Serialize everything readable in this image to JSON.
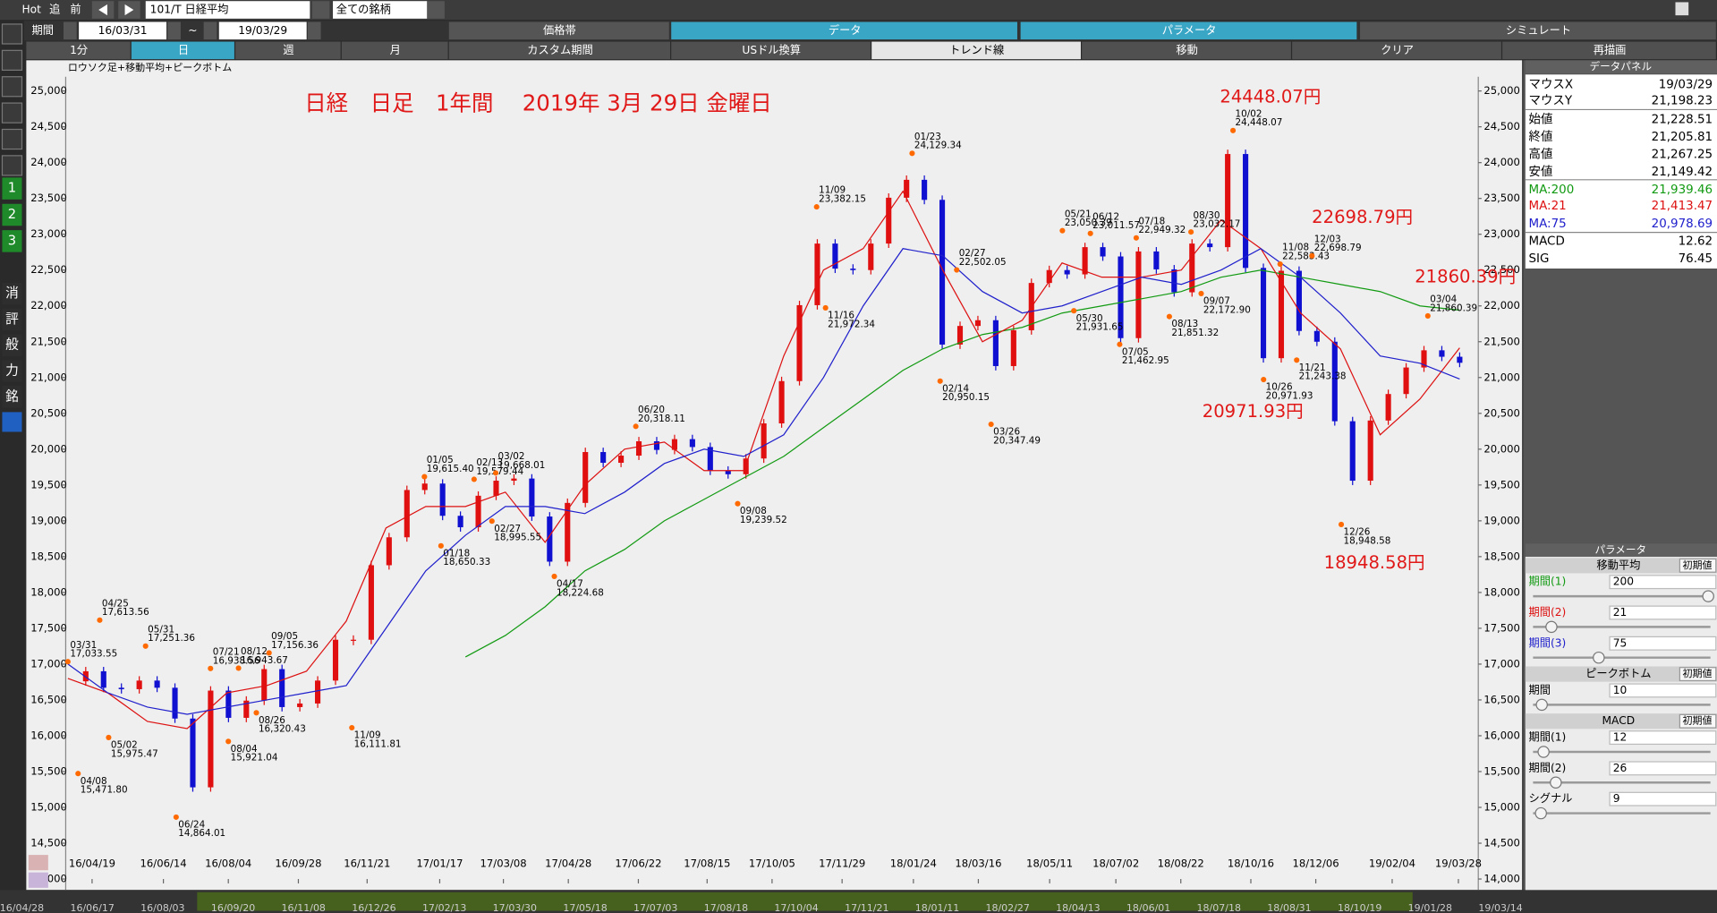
{
  "toolbar": {
    "hot": "Hot",
    "follow": "追",
    "prev": "前",
    "symbol": "101/T 日経平均",
    "filter": "全ての銘柄",
    "period_label": "期間",
    "period_start": "16/03/31",
    "tilde": "~",
    "period_end": "19/03/29"
  },
  "tabs": [
    "価格帯",
    "データ",
    "パラメータ",
    "シミュレート"
  ],
  "buttons": [
    "1分",
    "日",
    "週",
    "月",
    "カスタム期間",
    "USドル換算",
    "トレンド線",
    "移動",
    "クリア",
    "再描画"
  ],
  "sidebar": [
    "1",
    "2",
    "3",
    "消",
    "評",
    "般",
    "力",
    "銘"
  ],
  "chart_data": {
    "type": "candlestick",
    "title": "ロウソク足+移動平均+ピークボトム",
    "annotations": [
      "日経　日足　1年間　 2019年 3月 29日 金曜日",
      "24448.07円",
      "22698.79円",
      "21860.39円",
      "20971.93円",
      "18948.58円"
    ],
    "ylim": [
      14000,
      25000
    ],
    "yticks": [
      {
        "value": 14000,
        "label": "14,000"
      },
      {
        "value": 14500,
        "label": "14,500"
      },
      {
        "value": 15000,
        "label": "15,000"
      },
      {
        "value": 15500,
        "label": "15,500"
      },
      {
        "value": 16000,
        "label": "16,000"
      },
      {
        "value": 16500,
        "label": "16,500"
      },
      {
        "value": 17000,
        "label": "17,000"
      },
      {
        "value": 17500,
        "label": "17,500"
      },
      {
        "value": 18000,
        "label": "18,000"
      },
      {
        "value": 18500,
        "label": "18,500"
      },
      {
        "value": 19000,
        "label": "19,000"
      },
      {
        "value": 19500,
        "label": "19,500"
      },
      {
        "value": 20000,
        "label": "20,000"
      },
      {
        "value": 20500,
        "label": "20,500"
      },
      {
        "value": 21000,
        "label": "21,000"
      },
      {
        "value": 21500,
        "label": "21,500"
      },
      {
        "value": 22000,
        "label": "22,000"
      },
      {
        "value": 22500,
        "label": "22,500"
      },
      {
        "value": 23000,
        "label": "23,000"
      },
      {
        "value": 23500,
        "label": "23,500"
      },
      {
        "value": 24000,
        "label": "24,000"
      },
      {
        "value": 24500,
        "label": "24,500"
      },
      {
        "value": 25000,
        "label": "25,000"
      }
    ],
    "xticks": [
      "16/04/19",
      "16/06/14",
      "16/08/04",
      "16/09/28",
      "16/11/21",
      "17/01/17",
      "17/03/08",
      "17/04/28",
      "17/06/22",
      "17/08/15",
      "17/10/05",
      "17/11/29",
      "18/01/24",
      "18/03/16",
      "18/05/11",
      "18/07/02",
      "18/08/22",
      "18/10/16",
      "18/12/06",
      "19/02/04",
      "19/03/28"
    ],
    "scroll_dates": [
      "16/04/28",
      "16/06/17",
      "16/08/03",
      "16/09/20",
      "16/11/08",
      "16/12/26",
      "17/02/13",
      "17/03/30",
      "17/05/18",
      "17/07/03",
      "17/08/18",
      "17/10/04",
      "17/11/21",
      "18/01/11",
      "18/02/27",
      "18/04/13",
      "18/06/01",
      "18/07/18",
      "18/08/31",
      "18/10/19",
      "19/01/28",
      "19/03/14"
    ],
    "candles": {
      "up_color": "#e01010",
      "down_color": "#1010d0",
      "values": [
        16760,
        16900,
        16670,
        16650,
        16770,
        16670,
        16240,
        15280,
        16630,
        16250,
        16490,
        16930,
        16400,
        16450,
        16770,
        17340,
        17340,
        18380,
        18770,
        19430,
        19520,
        19070,
        18910,
        19350,
        19560,
        19590,
        19060,
        18430,
        19250,
        19960,
        19810,
        19910,
        20110,
        19990,
        20140,
        20030,
        19700,
        19650,
        19870,
        20360,
        20950,
        22010,
        22870,
        22520,
        22500,
        22870,
        23510,
        23760,
        23480,
        21460,
        21720,
        21800,
        21160,
        21660,
        22320,
        22500,
        22440,
        22820,
        22690,
        21550,
        22760,
        22510,
        22190,
        22870,
        22820,
        24120,
        22530,
        21270,
        22490,
        21650,
        21500,
        20390,
        19560,
        20400,
        20770,
        21140,
        21380,
        21290,
        21205.81
      ]
    },
    "series": [
      {
        "name": "MA:200",
        "color": "#129a12",
        "values": [
          null,
          null,
          null,
          null,
          null,
          null,
          null,
          null,
          null,
          null,
          17100,
          17400,
          17800,
          18300,
          18600,
          19000,
          19300,
          19600,
          19900,
          20300,
          20700,
          21100,
          21400,
          21600,
          21700,
          21900,
          22000,
          22100,
          22200,
          22400,
          22500,
          22400,
          22300,
          22200,
          22000,
          21939.46
        ]
      },
      {
        "name": "MA:21",
        "color": "#dd1111",
        "values": [
          16800,
          16600,
          16200,
          16100,
          16600,
          16700,
          16900,
          17600,
          18900,
          19200,
          19200,
          19400,
          18700,
          19500,
          20000,
          20100,
          19700,
          19700,
          21300,
          22500,
          22800,
          23600,
          22500,
          21500,
          21800,
          22600,
          22400,
          22400,
          22500,
          23200,
          22800,
          21900,
          21400,
          20200,
          20700,
          21413.47
        ]
      },
      {
        "name": "MA:75",
        "color": "#2020cc",
        "values": [
          17000,
          16600,
          16400,
          16300,
          16400,
          16500,
          16600,
          16700,
          17500,
          18300,
          18800,
          19200,
          19200,
          19100,
          19400,
          19800,
          20000,
          19900,
          20200,
          21000,
          22000,
          22800,
          22700,
          22200,
          21900,
          22000,
          22200,
          22400,
          22300,
          22500,
          22800,
          22400,
          21900,
          21300,
          21200,
          20978.69
        ]
      }
    ],
    "peaks": {
      "color": "#ff6a00",
      "dates": [
        "03/31",
        "04/08",
        "04/25",
        "05/02",
        "05/31",
        "06/24",
        "07/21",
        "08/04",
        "08/12",
        "08/26",
        "09/05",
        "11/09",
        "01/05",
        "01/18",
        "02/13",
        "02/27",
        "03/02",
        "04/17",
        "06/20",
        "09/08",
        "11/09",
        "11/16",
        "01/23",
        "02/14",
        "02/27",
        "03/26",
        "05/21",
        "05/30",
        "06/12",
        "07/05",
        "07/18",
        "08/13",
        "08/30",
        "09/07",
        "10/02",
        "10/26",
        "11/08",
        "11/21",
        "12/03",
        "12/26",
        "03/04"
      ],
      "values": [
        17033.55,
        15471.8,
        17613.56,
        15975.47,
        17251.36,
        14864.01,
        16938.56,
        15921.04,
        16943.67,
        16320.43,
        17156.36,
        16111.81,
        19615.4,
        18650.33,
        19579.44,
        18995.55,
        19668.01,
        18224.68,
        20318.11,
        19239.52,
        23382.15,
        21972.34,
        24129.34,
        20950.15,
        22502.05,
        20347.49,
        23050.39,
        21931.65,
        23011.57,
        21462.95,
        22949.32,
        21851.32,
        23032.17,
        22172.9,
        24448.07,
        20971.93,
        22583.43,
        21243.38,
        22698.79,
        18948.58,
        21860.39
      ],
      "value_labels": [
        "17,033.55",
        "15,471.80",
        "17,613.56",
        "15,975.47",
        "17,251.36",
        "14,864.01",
        "16,938.56",
        "15,921.04",
        "16,943.67",
        "16,320.43",
        "17,156.36",
        "16,111.81",
        "19,615.40",
        "18,650.33",
        "19,579.44",
        "18,995.55",
        "19,668.01",
        "18,224.68",
        "20,318.11",
        "19,239.52",
        "23,382.15",
        "21,972.34",
        "24,129.34",
        "20,950.15",
        "22,502.05",
        "20,347.49",
        "23,050.39",
        "21,931.65",
        "23,011.57",
        "21,462.95",
        "22,949.32",
        "21,851.32",
        "23,032.17",
        "22,172.90",
        "24,448.07",
        "20,971.93",
        "22,583.43",
        "21,243.38",
        "22,698.79",
        "18,948.58",
        "21,860.39"
      ]
    }
  },
  "data_panel": {
    "title": "データパネル",
    "rows": [
      [
        "マウスX",
        "19/03/29"
      ],
      [
        "マウスY",
        "21,198.23"
      ],
      [
        "始値",
        "21,228.51"
      ],
      [
        "終値",
        "21,205.81"
      ],
      [
        "高値",
        "21,267.25"
      ],
      [
        "安値",
        "21,149.42"
      ],
      [
        "MA:200",
        "21,939.46"
      ],
      [
        "MA:21",
        "21,413.47"
      ],
      [
        "MA:75",
        "20,978.69"
      ],
      [
        "MACD",
        "12.62"
      ],
      [
        "SIG",
        "76.45"
      ]
    ]
  },
  "parameter_panel": {
    "title": "パラメータ",
    "reset": "初期値",
    "sections": [
      {
        "title": "移動平均",
        "params": [
          {
            "label": "期間(1)",
            "value": 200
          },
          {
            "label": "期間(2)",
            "value": 21
          },
          {
            "label": "期間(3)",
            "value": 75
          }
        ]
      },
      {
        "title": "ピークボトム",
        "params": [
          {
            "label": "期間",
            "value": 10
          }
        ]
      },
      {
        "title": "MACD",
        "params": [
          {
            "label": "期間(1)",
            "value": 12
          },
          {
            "label": "期間(2)",
            "value": 26
          },
          {
            "label": "シグナル",
            "value": 9
          }
        ]
      }
    ]
  }
}
